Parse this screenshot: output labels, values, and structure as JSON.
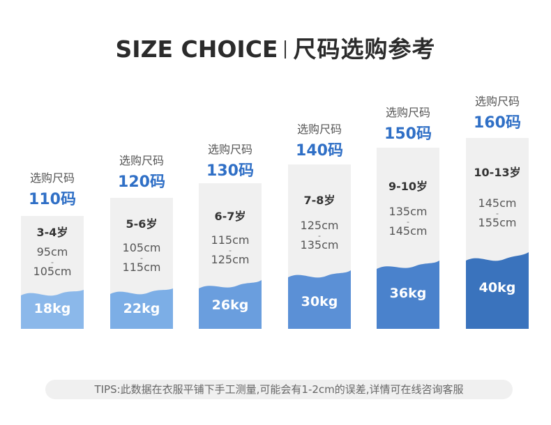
{
  "title": {
    "en": "SIZE CHOICE",
    "cn": "尺码选购参考"
  },
  "columns": [
    {
      "label": "选购尺码",
      "size": "110码",
      "age": "3-4岁",
      "height_from": "95cm",
      "height_to": "105cm",
      "dash": "-",
      "weight": "18kg",
      "color": "#8bb8ea"
    },
    {
      "label": "选购尺码",
      "size": "120码",
      "age": "5-6岁",
      "height_from": "105cm",
      "height_to": "115cm",
      "dash": "-",
      "weight": "22kg",
      "color": "#7caee6"
    },
    {
      "label": "选购尺码",
      "size": "130码",
      "age": "6-7岁",
      "height_from": "115cm",
      "height_to": "125cm",
      "dash": "-",
      "weight": "26kg",
      "color": "#6a9ede"
    },
    {
      "label": "选购尺码",
      "size": "140码",
      "age": "7-8岁",
      "height_from": "125cm",
      "height_to": "135cm",
      "dash": "-",
      "weight": "30kg",
      "color": "#5b90d6"
    },
    {
      "label": "选购尺码",
      "size": "150码",
      "age": "9-10岁",
      "height_from": "135cm",
      "height_to": "145cm",
      "dash": "-",
      "weight": "36kg",
      "color": "#4a82cc"
    },
    {
      "label": "选购尺码",
      "size": "160码",
      "age": "10-13岁",
      "height_from": "145cm",
      "height_to": "155cm",
      "dash": "-",
      "weight": "40kg",
      "color": "#3a73bd"
    }
  ],
  "tips": "TIPS:此数据在衣服平铺下手工测量,可能会有1-2cm的误差,详情可在线咨询客服"
}
